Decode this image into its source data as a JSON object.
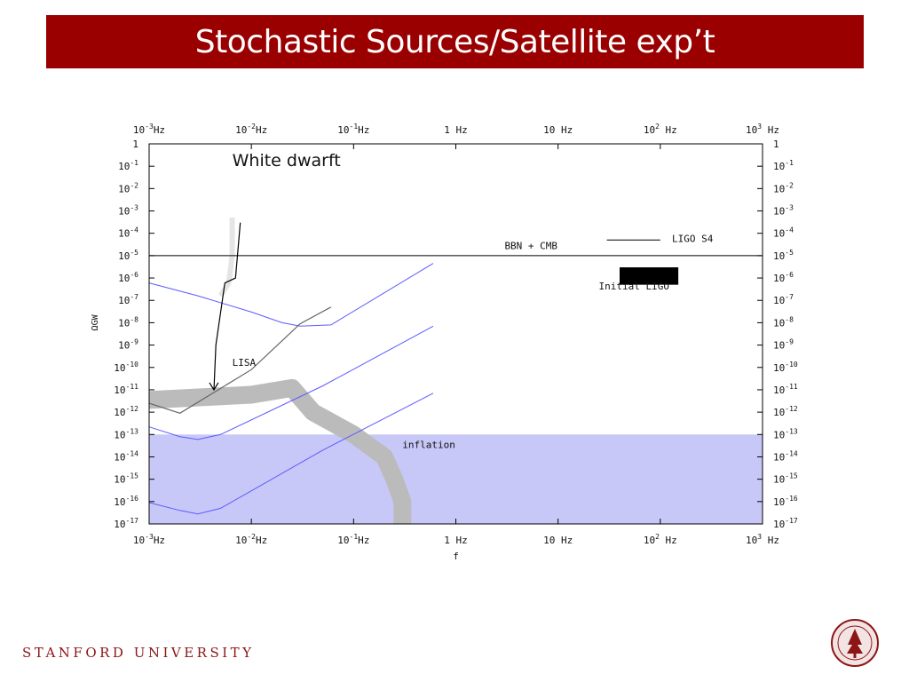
{
  "slide": {
    "title": "Stochastic Sources/Satellite exp’t",
    "footer": "STANFORD UNIVERSITY",
    "colors": {
      "title_bg": "#9a0000",
      "footer": "#8c1515"
    }
  },
  "chart_data": {
    "type": "line",
    "x_scale": "log",
    "y_scale": "log",
    "xlim": [
      0.001,
      1000
    ],
    "ylim": [
      1e-17,
      1
    ],
    "xlabel": "f",
    "ylabel": "ΩGW",
    "x_ticks": [
      {
        "value": 0.001,
        "label": "10",
        "exp": "-3",
        "unit": "Hz"
      },
      {
        "value": 0.01,
        "label": "10",
        "exp": "-2",
        "unit": "Hz"
      },
      {
        "value": 0.1,
        "label": "10",
        "exp": "-1",
        "unit": "Hz"
      },
      {
        "value": 1,
        "label": "1 Hz",
        "exp": "",
        "unit": ""
      },
      {
        "value": 10,
        "label": "10 Hz",
        "exp": "",
        "unit": ""
      },
      {
        "value": 100,
        "label": "10",
        "exp": "2",
        "unit": " Hz"
      },
      {
        "value": 1000,
        "label": "10",
        "exp": "3",
        "unit": " Hz"
      }
    ],
    "y_ticks": [
      {
        "value": 1,
        "label": "1",
        "exp": ""
      },
      {
        "value": 0.1,
        "label": "10",
        "exp": "-1"
      },
      {
        "value": 0.01,
        "label": "10",
        "exp": "-2"
      },
      {
        "value": 0.001,
        "label": "10",
        "exp": "-3"
      },
      {
        "value": 0.0001,
        "label": "10",
        "exp": "-4"
      },
      {
        "value": 1e-05,
        "label": "10",
        "exp": "-5"
      },
      {
        "value": 1e-06,
        "label": "10",
        "exp": "-6"
      },
      {
        "value": 1e-07,
        "label": "10",
        "exp": "-7"
      },
      {
        "value": 1e-08,
        "label": "10",
        "exp": "-8"
      },
      {
        "value": 1e-09,
        "label": "10",
        "exp": "-9"
      },
      {
        "value": 1e-10,
        "label": "10",
        "exp": "-10"
      },
      {
        "value": 1e-11,
        "label": "10",
        "exp": "-11"
      },
      {
        "value": 1e-12,
        "label": "10",
        "exp": "-12"
      },
      {
        "value": 1e-13,
        "label": "10",
        "exp": "-13"
      },
      {
        "value": 1e-14,
        "label": "10",
        "exp": "-14"
      },
      {
        "value": 1e-15,
        "label": "10",
        "exp": "-15"
      },
      {
        "value": 1e-16,
        "label": "10",
        "exp": "-16"
      },
      {
        "value": 1e-17,
        "label": "10",
        "exp": "-17"
      }
    ],
    "regions": [
      {
        "name": "inflation",
        "label": "inflation",
        "y_upper": 1e-13,
        "color": "#c8c8f8",
        "label_at": {
          "x": 0.3,
          "y": 2.5e-14
        }
      }
    ],
    "horizontal_lines": [
      {
        "name": "BBN + CMB",
        "label": "BBN + CMB",
        "y": 1e-05,
        "color": "#000000",
        "label_at": {
          "x": 3,
          "y": 2e-05
        }
      }
    ],
    "series": [
      {
        "name": "blue-upper",
        "color": "#5b5bff",
        "width": 1,
        "points": [
          [
            0.001,
            6e-07
          ],
          [
            0.003,
            1.6e-07
          ],
          [
            0.01,
            3e-08
          ],
          [
            0.02,
            1e-08
          ],
          [
            0.03,
            7e-09
          ],
          [
            0.06,
            8e-09
          ],
          [
            0.6,
            4.5e-06
          ]
        ]
      },
      {
        "name": "blue-middle",
        "color": "#5b5bff",
        "width": 1,
        "points": [
          [
            0.001,
            2.2e-13
          ],
          [
            0.002,
            8e-14
          ],
          [
            0.003,
            6e-14
          ],
          [
            0.005,
            1e-13
          ],
          [
            0.05,
            1.5e-11
          ],
          [
            0.6,
            7e-09
          ]
        ]
      },
      {
        "name": "blue-lower",
        "color": "#5b5bff",
        "width": 1,
        "points": [
          [
            0.001,
            9e-17
          ],
          [
            0.002,
            4e-17
          ],
          [
            0.003,
            2.8e-17
          ],
          [
            0.005,
            5e-17
          ],
          [
            0.05,
            2e-14
          ],
          [
            0.6,
            7e-12
          ]
        ]
      },
      {
        "name": "LISA",
        "color": "#666666",
        "width": 1.2,
        "points": [
          [
            0.001,
            2.5e-12
          ],
          [
            0.002,
            9e-13
          ],
          [
            0.01,
            8e-11
          ],
          [
            0.03,
            9e-09
          ],
          [
            0.06,
            5e-08
          ]
        ]
      }
    ],
    "bands": [
      {
        "name": "white-dwarf-band",
        "color": "#bbbbbb",
        "width": 20,
        "points": [
          [
            0.001,
            3.5e-12
          ],
          [
            0.01,
            6e-12
          ],
          [
            0.025,
            1.2e-11
          ],
          [
            0.04,
            1e-12
          ],
          [
            0.1,
            1e-13
          ],
          [
            0.2,
            1e-14
          ],
          [
            0.25,
            1e-15
          ],
          [
            0.3,
            1e-16
          ],
          [
            0.3,
            1e-17
          ]
        ]
      },
      {
        "name": "white-dwarf-faint",
        "color": "#e5e5e5",
        "width": 6,
        "points": [
          [
            0.0065,
            0.0005
          ],
          [
            0.0065,
            1e-05
          ],
          [
            0.006,
            6e-07
          ],
          [
            0.005,
            1.6e-07
          ]
        ]
      }
    ],
    "annotations": [
      {
        "name": "LISA",
        "text": "LISA",
        "x": 0.0065,
        "y": 1.2e-10,
        "font": "mono"
      },
      {
        "name": "LIGO S4",
        "text": "LIGO S4",
        "x": 130,
        "y": 4e-05,
        "font": "mono",
        "line_from_x": 30,
        "line_to_x": 100,
        "line_y": 5e-05
      }
    ],
    "boxes": [
      {
        "name": "Initial LIGO",
        "label": "Initial LIGO",
        "x_range": [
          40,
          150
        ],
        "y_range": [
          5e-07,
          3e-06
        ],
        "color": "#000000",
        "label_at": {
          "x": 25,
          "y": 3e-07
        }
      }
    ],
    "callout": {
      "text": "White dwarft",
      "text_at": {
        "x": 0.0065,
        "y": 0.1
      },
      "curve": [
        [
          0.0078,
          0.0003
        ],
        [
          0.007,
          1e-06
        ],
        [
          0.0055,
          6e-07
        ],
        [
          0.0045,
          1e-09
        ],
        [
          0.0043,
          1e-11
        ]
      ]
    }
  }
}
